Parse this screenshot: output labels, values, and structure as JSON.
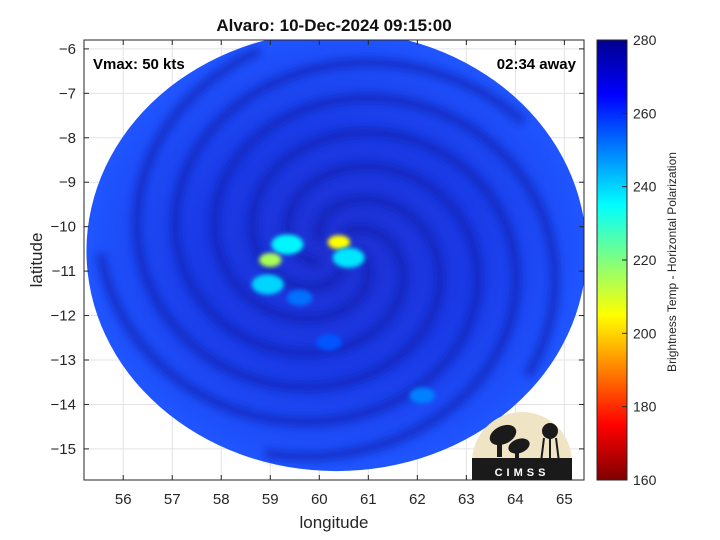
{
  "title": "Alvaro: 10-Dec-2024 09:15:00",
  "vmax_label": "Vmax: 50 kts",
  "time_away_label": "02:34 away",
  "xlabel": "longitude",
  "ylabel": "latitude",
  "colorbar_label": "Brightness Temp - Horizontal Polarization",
  "logo_text": "CIMSS",
  "map": {
    "lon_range": [
      55.2,
      65.4
    ],
    "lat_range": [
      -15.7,
      -5.8
    ],
    "x_ticks": [
      56,
      57,
      58,
      59,
      60,
      61,
      62,
      63,
      64,
      65
    ],
    "y_ticks": [
      -6,
      -7,
      -8,
      -9,
      -10,
      -11,
      -12,
      -13,
      -14,
      -15
    ],
    "grid": true,
    "swath_center": [
      60.35,
      -10.55
    ],
    "swath_radii_deg": [
      5.1,
      4.95
    ],
    "background_bt": 262,
    "features": [
      {
        "lon": 59.35,
        "lat": -10.4,
        "bt": 236
      },
      {
        "lon": 60.4,
        "lat": -10.35,
        "bt": 205
      },
      {
        "lon": 59.0,
        "lat": -10.75,
        "bt": 215
      },
      {
        "lon": 60.6,
        "lat": -10.7,
        "bt": 238
      },
      {
        "lon": 58.95,
        "lat": -11.3,
        "bt": 240
      },
      {
        "lon": 59.6,
        "lat": -11.6,
        "bt": 252
      },
      {
        "lon": 60.2,
        "lat": -12.6,
        "bt": 255
      },
      {
        "lon": 62.1,
        "lat": -13.8,
        "bt": 250
      },
      {
        "lon": 63.7,
        "lat": -14.9,
        "bt": 248
      }
    ]
  },
  "colorbar": {
    "min": 160,
    "max": 280,
    "ticks": [
      280,
      260,
      240,
      220,
      200,
      180,
      160
    ],
    "colors": [
      "#7f0000",
      "#ff0000",
      "#ff8000",
      "#ffff00",
      "#80ff80",
      "#00ffff",
      "#0080ff",
      "#0000ff",
      "#00008f"
    ]
  }
}
